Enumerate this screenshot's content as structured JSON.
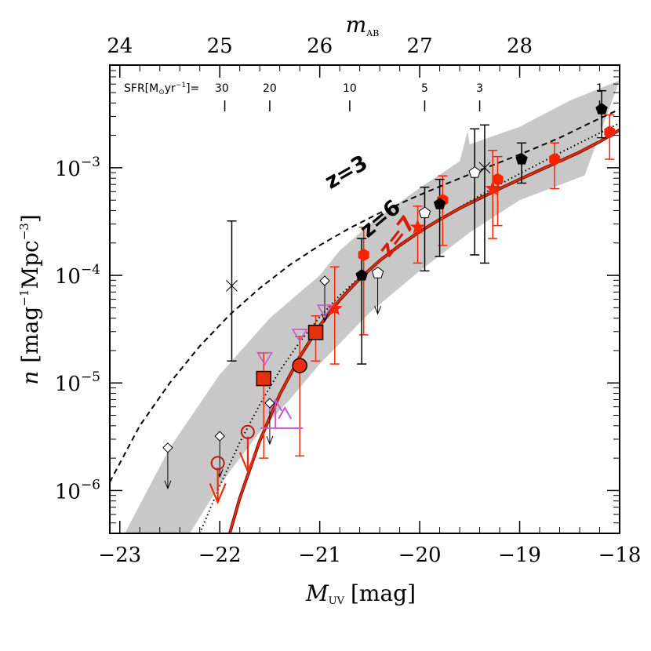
{
  "chart_data": {
    "type": "scatter",
    "x_axis": {
      "label_main": "M",
      "label_sub": "UV",
      "label_unit": "[mag]",
      "ticks": [
        -23,
        -22,
        -21,
        -20,
        -19,
        -18
      ],
      "tick_labels": [
        "−23",
        "−22",
        "−21",
        "−20",
        "−19",
        "−18"
      ],
      "range": [
        -23.1,
        -18.0
      ]
    },
    "y_axis": {
      "scale": "log",
      "label_main": "n",
      "label_unit": "[mag",
      "label_exp1": "−1",
      "label_mid": "Mpc",
      "label_exp2": "−3",
      "label_close": "]",
      "decades": [
        -6,
        -5,
        -4,
        -3
      ],
      "tick_base": "10",
      "tick_exponents": [
        "−6",
        "−5",
        "−4",
        "−3"
      ],
      "range": [
        4e-07,
        0.009
      ]
    },
    "top_axis": {
      "label_main": "m",
      "label_sub": "AB",
      "ticks": [
        24,
        25,
        26,
        27,
        28
      ],
      "tick_labels": [
        "24",
        "25",
        "26",
        "27",
        "28"
      ],
      "offset": 47.0
    },
    "sfr_scale": {
      "prefix": "SFR[M",
      "sun_symbol": "⊙",
      "unit_mid": "yr",
      "unit_exp": "−1",
      "unit_close": "]=",
      "ticks": [
        {
          "label": "30",
          "x": -21.95
        },
        {
          "label": "20",
          "x": -21.5
        },
        {
          "label": "10",
          "x": -20.7
        },
        {
          "label": "5",
          "x": -19.95
        },
        {
          "label": "3",
          "x": -19.4
        },
        {
          "label": "1",
          "x": -18.2
        }
      ]
    },
    "curves": [
      {
        "name": "z=3",
        "style": "dashed",
        "color": "#000000",
        "points": [
          [
            -23.1,
            1.2e-06
          ],
          [
            -22.8,
            4e-06
          ],
          [
            -22.5,
            1e-05
          ],
          [
            -22.2,
            2.2e-05
          ],
          [
            -21.9,
            4.3e-05
          ],
          [
            -21.6,
            7.6e-05
          ],
          [
            -21.3,
            0.000125
          ],
          [
            -21.0,
            0.00019
          ],
          [
            -20.7,
            0.000275
          ],
          [
            -20.4,
            0.00038
          ],
          [
            -20.1,
            0.00051
          ],
          [
            -19.8,
            0.00067
          ],
          [
            -19.5,
            0.00087
          ],
          [
            -19.2,
            0.00112
          ],
          [
            -18.9,
            0.00145
          ],
          [
            -18.6,
            0.0019
          ],
          [
            -18.3,
            0.0026
          ],
          [
            -18.0,
            0.0035
          ]
        ]
      },
      {
        "name": "z=6",
        "style": "dotted",
        "color": "#000000",
        "points": [
          [
            -22.2,
            4e-07
          ],
          [
            -22.0,
            1.1e-06
          ],
          [
            -21.8,
            2.8e-06
          ],
          [
            -21.6,
            6.3e-06
          ],
          [
            -21.4,
            1.3e-05
          ],
          [
            -21.2,
            2.4e-05
          ],
          [
            -21.0,
            4.1e-05
          ],
          [
            -20.8,
            6.5e-05
          ],
          [
            -20.6,
            9.6e-05
          ],
          [
            -20.4,
            0.000135
          ],
          [
            -20.2,
            0.000185
          ],
          [
            -20.0,
            0.00025
          ],
          [
            -19.8,
            0.00033
          ],
          [
            -19.6,
            0.00043
          ],
          [
            -19.4,
            0.00055
          ],
          [
            -19.2,
            0.0007
          ],
          [
            -19.0,
            0.00088
          ],
          [
            -18.8,
            0.0011
          ],
          [
            -18.6,
            0.00137
          ],
          [
            -18.4,
            0.0017
          ],
          [
            -18.2,
            0.0021
          ],
          [
            -18.0,
            0.0026
          ]
        ]
      },
      {
        "name": "z=7",
        "style": "solid",
        "color": "#e8300e",
        "points": [
          [
            -21.9,
            4e-07
          ],
          [
            -21.8,
            8.5e-07
          ],
          [
            -21.6,
            2.9e-06
          ],
          [
            -21.4,
            7.8e-06
          ],
          [
            -21.2,
            1.75e-05
          ],
          [
            -21.0,
            3.4e-05
          ],
          [
            -20.8,
            5.9e-05
          ],
          [
            -20.6,
            9.3e-05
          ],
          [
            -20.4,
            0.000137
          ],
          [
            -20.2,
            0.00019
          ],
          [
            -20.0,
            0.000255
          ],
          [
            -19.8,
            0.00033
          ],
          [
            -19.6,
            0.00042
          ],
          [
            -19.4,
            0.00052
          ],
          [
            -19.2,
            0.00064
          ],
          [
            -19.0,
            0.00078
          ],
          [
            -18.8,
            0.00095
          ],
          [
            -18.6,
            0.00115
          ],
          [
            -18.4,
            0.0014
          ],
          [
            -18.2,
            0.00175
          ],
          [
            -18.0,
            0.00225
          ]
        ]
      }
    ],
    "band": {
      "color": "#c8c8c8",
      "upper": [
        [
          -22.95,
          4e-07
        ],
        [
          -22.5,
          2.5e-06
        ],
        [
          -22.0,
          1.2e-05
        ],
        [
          -21.5,
          4e-05
        ],
        [
          -21.0,
          0.0001
        ],
        [
          -20.8,
          0.00017
        ],
        [
          -20.5,
          0.0003
        ],
        [
          -20.0,
          0.00065
        ],
        [
          -19.6,
          0.00115
        ],
        [
          -19.52,
          0.0022
        ],
        [
          -19.5,
          0.00165
        ],
        [
          -19.0,
          0.0024
        ],
        [
          -18.5,
          0.0042
        ],
        [
          -18.0,
          0.0065
        ]
      ],
      "lower": [
        [
          -18.35,
          0.00085
        ],
        [
          -19.0,
          0.0005
        ],
        [
          -19.5,
          0.00025
        ],
        [
          -20.0,
          0.00011
        ],
        [
          -20.5,
          4.5e-05
        ],
        [
          -21.0,
          1.5e-05
        ],
        [
          -21.3,
          7e-06
        ],
        [
          -21.6,
          3.5e-06
        ],
        [
          -21.9,
          1.5e-06
        ],
        [
          -22.1,
          8e-07
        ],
        [
          -22.3,
          4e-07
        ]
      ]
    },
    "series": [
      {
        "name": "",
        "marker": "filled-circle-red",
        "color": "#e8300e",
        "points": [
          {
            "x": -21.2,
            "y": 1.45e-05,
            "ylo": 2.1e-06,
            "yhi": 2.7e-05
          }
        ]
      },
      {
        "name": "",
        "marker": "filled-square-red",
        "color": "#e8300e",
        "points": [
          {
            "x": -21.56,
            "y": 1.1e-05,
            "ylo": 2e-06,
            "yhi": 1.9e-05
          },
          {
            "x": -21.04,
            "y": 2.95e-05,
            "ylo": 1.6e-05,
            "yhi": 4.2e-05
          }
        ]
      },
      {
        "name": "",
        "marker": "open-circle-red",
        "color": "#c01818",
        "points": [
          {
            "x": -22.02,
            "y": 1.8e-06
          },
          {
            "x": -21.72,
            "y": 3.5e-06
          }
        ]
      },
      {
        "name": "",
        "marker": "red-hexagon",
        "color": "#ff2200",
        "points": [
          {
            "x": -20.56,
            "y": 0.000155,
            "ylo": 2.8e-05,
            "yhi": 0.00028
          },
          {
            "x": -19.77,
            "y": 0.0005,
            "ylo": 0.00019,
            "yhi": 0.00084
          },
          {
            "x": -19.22,
            "y": 0.00078,
            "ylo": 0.00029,
            "yhi": 0.00127
          },
          {
            "x": -18.65,
            "y": 0.0012,
            "ylo": 0.00064,
            "yhi": 0.0017
          },
          {
            "x": -18.1,
            "y": 0.00215,
            "ylo": 0.0012,
            "yhi": 0.0031
          }
        ]
      },
      {
        "name": "",
        "marker": "red-star",
        "color": "#ff2200",
        "points": [
          {
            "x": -20.85,
            "y": 4.9e-05,
            "ylo": 1.5e-05,
            "yhi": 0.00012
          },
          {
            "x": -20.02,
            "y": 0.00028,
            "ylo": 0.00013,
            "yhi": 0.00044
          },
          {
            "x": -19.27,
            "y": 0.00064,
            "ylo": 0.00022,
            "yhi": 0.00145
          }
        ]
      },
      {
        "name": "",
        "marker": "black-pentagon",
        "color": "#000000",
        "points": [
          {
            "x": -20.58,
            "y": 0.0001,
            "ylo": 1.5e-05,
            "yhi": 0.00022
          },
          {
            "x": -19.8,
            "y": 0.00046,
            "ylo": 0.00015,
            "yhi": 0.00078
          },
          {
            "x": -18.98,
            "y": 0.0012,
            "ylo": 0.00072,
            "yhi": 0.0017
          },
          {
            "x": -18.18,
            "y": 0.0035,
            "ylo": 0.0019,
            "yhi": 0.0052
          }
        ]
      },
      {
        "name": "",
        "marker": "open-pentagon",
        "color": "#000000",
        "points": [
          {
            "x": -19.95,
            "y": 0.00038,
            "ylo": 0.00011,
            "yhi": 0.00066
          },
          {
            "x": -19.45,
            "y": 0.0009,
            "ylo": 0.000155,
            "yhi": 0.0023
          }
        ]
      },
      {
        "name": "",
        "marker": "cross",
        "color": "#000000",
        "points": [
          {
            "x": -21.88,
            "y": 8e-05,
            "ylo": 1.6e-05,
            "yhi": 0.00032
          },
          {
            "x": -19.35,
            "y": 0.001,
            "ylo": 0.00013,
            "yhi": 0.0025
          }
        ]
      },
      {
        "name": "",
        "marker": "magenta-triangle-down",
        "color": "#cc55cc",
        "points": [
          {
            "x": -21.55,
            "y": 1.7e-05
          },
          {
            "x": -21.2,
            "y": 2.8e-05
          },
          {
            "x": -20.95,
            "y": 4.7e-05
          }
        ]
      },
      {
        "name": "",
        "marker": "magenta-lower-limit",
        "color": "#cc55cc",
        "points": [
          {
            "x": -21.38,
            "y": 3.8e-06
          }
        ]
      }
    ],
    "upper_limits": [
      {
        "marker": "open-diamond",
        "color": "#000000",
        "x": -22.52,
        "y": 2.5e-06
      },
      {
        "marker": "open-diamond",
        "color": "#000000",
        "x": -22.0,
        "y": 3.2e-06
      },
      {
        "marker": "open-diamond",
        "color": "#000000",
        "x": -21.5,
        "y": 6.5e-06
      },
      {
        "marker": "open-diamond",
        "color": "#000000",
        "x": -20.95,
        "y": 8.9e-05
      },
      {
        "marker": "open-pentagon",
        "color": "#000000",
        "x": -20.42,
        "y": 0.000105
      },
      {
        "marker": "arrow-red",
        "color": "#e8300e",
        "x": -22.02,
        "y": 1.8e-06
      },
      {
        "marker": "arrow-red",
        "color": "#e8300e",
        "x": -21.72,
        "y": 3.5e-06
      }
    ],
    "annotations": [
      {
        "text": "z=3",
        "x": -20.7,
        "y": 0.0008,
        "color": "#000000",
        "angle": -30
      },
      {
        "text": "z=6",
        "x": -20.35,
        "y": 0.0003,
        "color": "#000000",
        "angle": -40
      },
      {
        "text": "z=7",
        "x": -20.17,
        "y": 0.00021,
        "color": "#d41e0a",
        "angle": -52
      }
    ]
  }
}
